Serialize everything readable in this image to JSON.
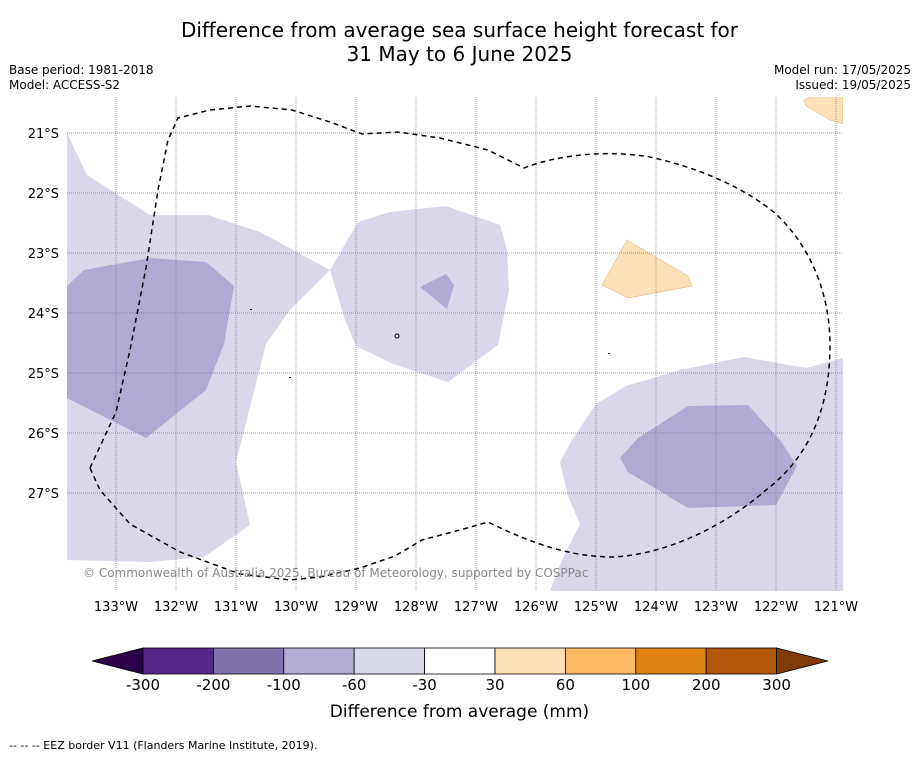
{
  "title_line1": "Difference from average sea surface height forecast for",
  "title_line2": "31 May to 6 June 2025",
  "meta_left": {
    "base_period": "Base period: 1981-2018",
    "model": "Model: ACCESS-S2"
  },
  "meta_right": {
    "model_run": "Model run: 17/05/2025",
    "issued": "Issued: 19/05/2025"
  },
  "map": {
    "lat_labels": [
      "21°S",
      "22°S",
      "23°S",
      "24°S",
      "25°S",
      "26°S",
      "27°S"
    ],
    "lon_labels": [
      "133°W",
      "132°W",
      "131°W",
      "130°W",
      "129°W",
      "128°W",
      "127°W",
      "126°W",
      "125°W",
      "124°W",
      "123°W",
      "122°W",
      "121°W"
    ],
    "copyright": "© Commonwealth of Australia 2025, Bureau of Meteorology, supported by COSPPac",
    "fill_colors": {
      "band_-60_-30": "#d8d8ea",
      "band_-100_-60": "#b0a9d1",
      "band_30_60": "#fee0b6"
    }
  },
  "colorbar": {
    "ticks": [
      "-300",
      "-200",
      "-100",
      "-60",
      "-30",
      "30",
      "60",
      "100",
      "200",
      "300"
    ],
    "colors": [
      "#2d004b",
      "#542788",
      "#8073ac",
      "#b2abd2",
      "#d8daeb",
      "#ffffff",
      "#fee0b6",
      "#fdb863",
      "#e08214",
      "#b35806",
      "#7f3b08"
    ],
    "label": "Difference from average (mm)"
  },
  "footnote": "--  --  -- EEZ border V11 (Flanders Marine Institute, 2019)."
}
